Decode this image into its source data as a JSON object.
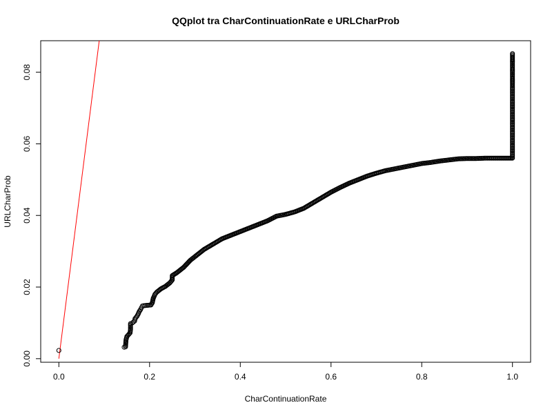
{
  "chart_data": {
    "type": "scatter",
    "title": "QQplot tra CharContinuationRate e URLCharProb",
    "xlabel": "CharContinuationRate",
    "ylabel": "URLCharProb",
    "xlim": [
      -0.04,
      1.04
    ],
    "ylim": [
      -0.001,
      0.0888
    ],
    "x_ticks": [
      0.0,
      0.2,
      0.4,
      0.6,
      0.8,
      1.0
    ],
    "x_tick_labels": [
      "0.0",
      "0.2",
      "0.4",
      "0.6",
      "0.8",
      "1.0"
    ],
    "y_ticks": [
      0.0,
      0.02,
      0.04,
      0.06,
      0.08
    ],
    "y_tick_labels": [
      "0.00",
      "0.02",
      "0.04",
      "0.06",
      "0.08"
    ],
    "grid": false,
    "point_color": "#000000",
    "reference_line": {
      "color": "#ff0000",
      "points": [
        [
          0.0,
          0.0
        ],
        [
          0.089,
          0.0888
        ]
      ]
    },
    "series": [
      {
        "points": [
          [
            0.0,
            0.0023
          ],
          [
            0.144,
            0.0032
          ],
          [
            0.147,
            0.0033
          ],
          [
            0.148,
            0.0052
          ],
          [
            0.15,
            0.0062
          ],
          [
            0.157,
            0.0072
          ],
          [
            0.158,
            0.0082
          ],
          [
            0.158,
            0.0098
          ],
          [
            0.162,
            0.01
          ],
          [
            0.167,
            0.0105
          ],
          [
            0.168,
            0.0112
          ],
          [
            0.172,
            0.0118
          ],
          [
            0.175,
            0.0125
          ],
          [
            0.177,
            0.0131
          ],
          [
            0.18,
            0.0137
          ],
          [
            0.182,
            0.0142
          ],
          [
            0.184,
            0.0147
          ],
          [
            0.187,
            0.0148
          ],
          [
            0.195,
            0.0149
          ],
          [
            0.203,
            0.015
          ],
          [
            0.206,
            0.0156
          ],
          [
            0.208,
            0.0168
          ],
          [
            0.212,
            0.018
          ],
          [
            0.216,
            0.0186
          ],
          [
            0.225,
            0.0195
          ],
          [
            0.235,
            0.0202
          ],
          [
            0.245,
            0.0212
          ],
          [
            0.25,
            0.022
          ],
          [
            0.25,
            0.0232
          ],
          [
            0.26,
            0.024
          ],
          [
            0.275,
            0.0255
          ],
          [
            0.29,
            0.0275
          ],
          [
            0.3,
            0.0285
          ],
          [
            0.32,
            0.0305
          ],
          [
            0.34,
            0.032
          ],
          [
            0.36,
            0.0335
          ],
          [
            0.38,
            0.0345
          ],
          [
            0.4,
            0.0355
          ],
          [
            0.42,
            0.0365
          ],
          [
            0.44,
            0.0375
          ],
          [
            0.46,
            0.0385
          ],
          [
            0.48,
            0.0398
          ],
          [
            0.5,
            0.0403
          ],
          [
            0.52,
            0.041
          ],
          [
            0.54,
            0.042
          ],
          [
            0.56,
            0.0435
          ],
          [
            0.58,
            0.045
          ],
          [
            0.6,
            0.0465
          ],
          [
            0.62,
            0.0478
          ],
          [
            0.64,
            0.049
          ],
          [
            0.66,
            0.05
          ],
          [
            0.68,
            0.051
          ],
          [
            0.7,
            0.0518
          ],
          [
            0.72,
            0.0525
          ],
          [
            0.74,
            0.053
          ],
          [
            0.76,
            0.0535
          ],
          [
            0.78,
            0.054
          ],
          [
            0.8,
            0.0545
          ],
          [
            0.82,
            0.0548
          ],
          [
            0.84,
            0.0552
          ],
          [
            0.86,
            0.0555
          ],
          [
            0.88,
            0.0558
          ],
          [
            0.9,
            0.0559
          ],
          [
            0.92,
            0.0559
          ],
          [
            0.94,
            0.056
          ],
          [
            0.952,
            0.056
          ],
          [
            1.0,
            0.056
          ],
          [
            1.0,
            0.058
          ],
          [
            1.0,
            0.06
          ],
          [
            1.0,
            0.062
          ],
          [
            1.0,
            0.064
          ],
          [
            1.0,
            0.066
          ],
          [
            1.0,
            0.068
          ],
          [
            1.0,
            0.07
          ],
          [
            1.0,
            0.072
          ],
          [
            1.0,
            0.074
          ],
          [
            1.0,
            0.076
          ],
          [
            1.0,
            0.0775
          ],
          [
            1.0,
            0.079
          ],
          [
            1.0,
            0.08
          ],
          [
            1.0,
            0.0815
          ],
          [
            1.0,
            0.0828
          ],
          [
            1.0,
            0.084
          ],
          [
            1.0,
            0.0852
          ]
        ]
      }
    ]
  }
}
